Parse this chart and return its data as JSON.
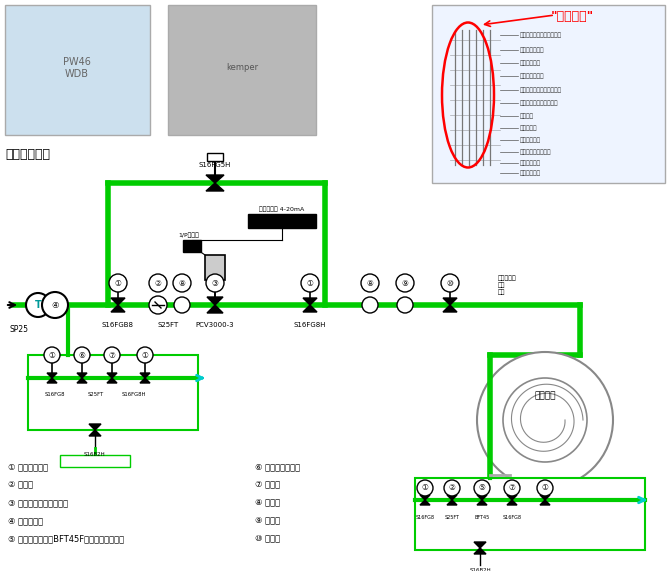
{
  "title": "蒸汽系统图：",
  "bg_color": "#ffffff",
  "figsize": [
    6.7,
    5.71
  ],
  "dpi": 100,
  "top_title": "\"疏蒸专组\"",
  "top_title_color": "#ff0000",
  "legend_items_left": [
    "① 波纹管截止阀",
    "② 过滤器",
    "③ 波纹管密封气动控制阀",
    "④ 汽水分离器",
    "⑤ 自由浮球疏水阀BFT45F（滚筒烘缸专用）"
  ],
  "legend_items_right": [
    "⑥ 自由浮球疏水阀",
    "⑦ 止回阀",
    "⑧ 压力表",
    "⑨ 安全阀",
    "⑩ 清水盘"
  ],
  "pipe_color": "#00cc00",
  "black_color": "#000000",
  "cyan_color": "#00cccc",
  "right_diagram_labels": [
    "疏气阀调整阀行程的控制管",
    "疏气阀调节针阀",
    "疏气阀调节阀",
    "活塞腔上止控节",
    "疏气阀调整阀行程下控制管",
    "疏气阀控制腔上端控制管",
    "高磁磁件",
    "疏气阀磁件",
    "调杆上控制阀",
    "疏气阀磁磁调控制阀",
    "疏气阀周周阀",
    "疏气阀疏水口"
  ]
}
